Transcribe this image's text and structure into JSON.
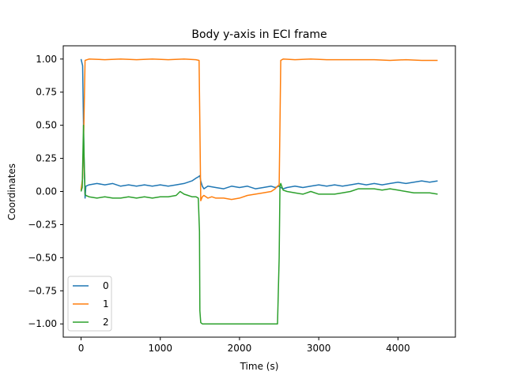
{
  "chart_data": {
    "type": "line",
    "title": "Body y-axis in ECI frame",
    "xlabel": "Time (s)",
    "ylabel": "Coordinates",
    "xlim": [
      -225,
      4725
    ],
    "ylim": [
      -1.1,
      1.1
    ],
    "xticks": [
      0,
      1000,
      2000,
      3000,
      4000
    ],
    "yticks": [
      -1.0,
      -0.75,
      -0.5,
      -0.25,
      0.0,
      0.25,
      0.5,
      0.75,
      1.0
    ],
    "xtick_labels": [
      "0",
      "1000",
      "2000",
      "3000",
      "4000"
    ],
    "ytick_labels": [
      "−1.00",
      "−0.75",
      "−0.50",
      "−0.25",
      "0.00",
      "0.25",
      "0.50",
      "0.75",
      "1.00"
    ],
    "grid": false,
    "legend": "lower-left",
    "series": [
      {
        "name": "0",
        "color": "#1f77b4",
        "x": [
          0,
          20,
          35,
          50,
          60,
          100,
          200,
          300,
          400,
          500,
          600,
          700,
          800,
          900,
          1000,
          1100,
          1200,
          1300,
          1400,
          1450,
          1480,
          1500,
          1510,
          1530,
          1550,
          1600,
          1700,
          1800,
          1900,
          2000,
          2100,
          2200,
          2300,
          2400,
          2450,
          2500,
          2520,
          2550,
          2600,
          2700,
          2800,
          2900,
          3000,
          3100,
          3200,
          3300,
          3400,
          3500,
          3600,
          3700,
          3800,
          3900,
          4000,
          4100,
          4200,
          4300,
          4400,
          4500
        ],
        "y": [
          1.0,
          0.95,
          0.3,
          -0.05,
          0.04,
          0.05,
          0.06,
          0.05,
          0.06,
          0.04,
          0.05,
          0.04,
          0.05,
          0.04,
          0.05,
          0.04,
          0.05,
          0.06,
          0.08,
          0.1,
          0.11,
          0.12,
          0.08,
          0.04,
          0.02,
          0.04,
          0.03,
          0.02,
          0.04,
          0.03,
          0.04,
          0.02,
          0.03,
          0.04,
          0.03,
          0.04,
          0.03,
          0.02,
          0.03,
          0.04,
          0.03,
          0.04,
          0.05,
          0.04,
          0.05,
          0.04,
          0.05,
          0.06,
          0.05,
          0.06,
          0.05,
          0.06,
          0.07,
          0.06,
          0.07,
          0.08,
          0.07,
          0.08
        ]
      },
      {
        "name": "1",
        "color": "#ff7f0e",
        "x": [
          0,
          20,
          35,
          50,
          100,
          300,
          500,
          700,
          900,
          1100,
          1300,
          1450,
          1490,
          1500,
          1510,
          1530,
          1550,
          1600,
          1650,
          1700,
          1800,
          1900,
          2000,
          2100,
          2200,
          2300,
          2400,
          2450,
          2480,
          2500,
          2510,
          2520,
          2550,
          2700,
          2900,
          3100,
          3300,
          3500,
          3700,
          3900,
          4100,
          4300,
          4500
        ],
        "y": [
          0.01,
          0.1,
          0.5,
          0.99,
          1.0,
          0.995,
          1.0,
          0.995,
          1.0,
          0.995,
          1.0,
          0.995,
          0.99,
          0.5,
          -0.07,
          -0.04,
          -0.03,
          -0.05,
          -0.04,
          -0.05,
          -0.05,
          -0.06,
          -0.05,
          -0.03,
          -0.02,
          -0.01,
          0.0,
          0.02,
          0.04,
          0.05,
          0.5,
          0.99,
          1.0,
          0.995,
          1.0,
          0.995,
          0.995,
          0.995,
          0.995,
          0.99,
          0.995,
          0.99,
          0.99
        ]
      },
      {
        "name": "2",
        "color": "#2ca02c",
        "x": [
          0,
          15,
          30,
          40,
          50,
          60,
          100,
          200,
          300,
          400,
          500,
          600,
          700,
          800,
          900,
          1000,
          1100,
          1200,
          1250,
          1300,
          1350,
          1400,
          1450,
          1480,
          1495,
          1500,
          1510,
          1530,
          1550,
          1700,
          1900,
          2100,
          2300,
          2400,
          2480,
          2500,
          2510,
          2520,
          2550,
          2600,
          2700,
          2800,
          2900,
          3000,
          3100,
          3200,
          3300,
          3400,
          3500,
          3600,
          3700,
          3800,
          3900,
          4000,
          4100,
          4200,
          4300,
          4400,
          4500
        ],
        "y": [
          0.0,
          0.03,
          0.5,
          0.2,
          -0.02,
          -0.03,
          -0.04,
          -0.05,
          -0.04,
          -0.05,
          -0.05,
          -0.04,
          -0.05,
          -0.04,
          -0.05,
          -0.04,
          -0.04,
          -0.03,
          0.0,
          -0.02,
          -0.03,
          -0.04,
          -0.04,
          -0.05,
          -0.3,
          -0.9,
          -0.99,
          -1.0,
          -1.0,
          -1.0,
          -1.0,
          -1.0,
          -1.0,
          -1.0,
          -1.0,
          -0.5,
          0.04,
          0.06,
          0.01,
          0.0,
          -0.01,
          -0.02,
          0.0,
          -0.02,
          -0.02,
          -0.02,
          -0.01,
          0.0,
          0.02,
          0.02,
          0.02,
          0.01,
          0.02,
          0.01,
          0.0,
          -0.01,
          -0.01,
          -0.01,
          -0.02
        ]
      }
    ]
  }
}
